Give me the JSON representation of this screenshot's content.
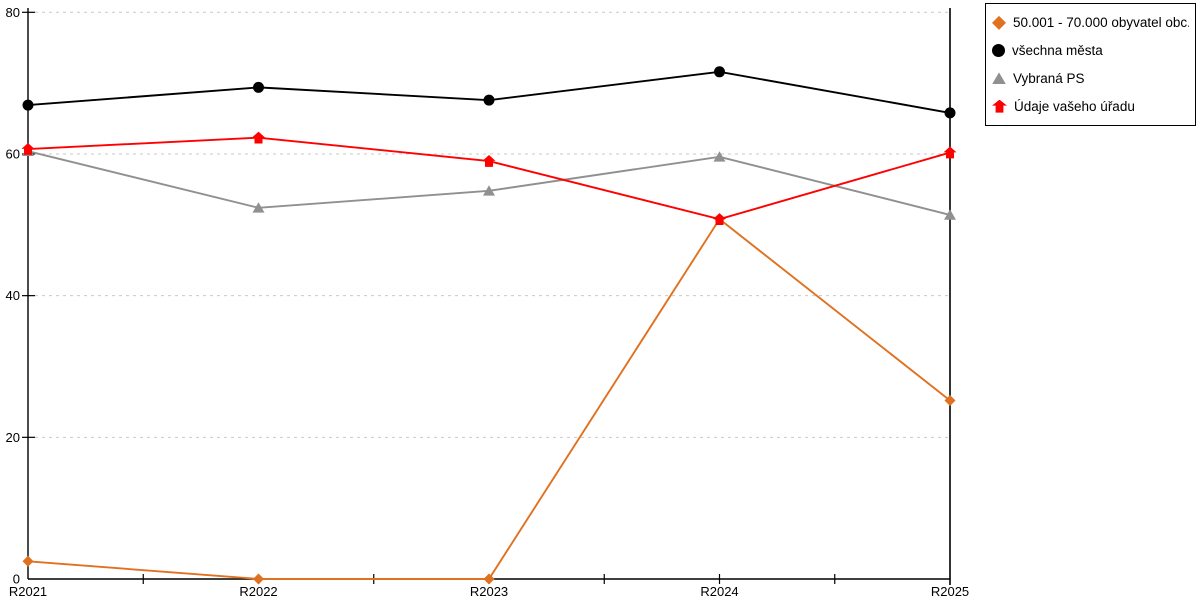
{
  "chart_data": {
    "type": "line",
    "title": "",
    "xlabel": "",
    "ylabel": "",
    "x": [
      "R2021",
      "R2022",
      "R2023",
      "R2024",
      "R2025"
    ],
    "series": [
      {
        "name": "50.001 - 70.000 obyvatel obc...",
        "marker": "diamond",
        "color": "#e07120",
        "values": [
          2.5,
          0,
          0,
          50.8,
          25.2
        ]
      },
      {
        "name": "všechna města",
        "marker": "circle",
        "color": "#000000",
        "values": [
          66.9,
          69.4,
          67.6,
          71.6,
          65.8
        ]
      },
      {
        "name": "Vybraná PS",
        "marker": "triangle",
        "color": "#909090",
        "values": [
          60.4,
          52.4,
          54.8,
          59.6,
          51.4
        ]
      },
      {
        "name": "Údaje vašeho úřadu",
        "marker": "house",
        "color": "#ff0000",
        "values": [
          60.7,
          62.3,
          59.0,
          50.8,
          60.2
        ]
      }
    ],
    "ylim": [
      0,
      80
    ],
    "yticks": [
      0,
      20,
      40,
      60,
      80
    ],
    "grid": "horizontal-dashed",
    "gridline_color": "#c9c9c9",
    "axis_color": "#000000",
    "legend_position": "top-right"
  }
}
